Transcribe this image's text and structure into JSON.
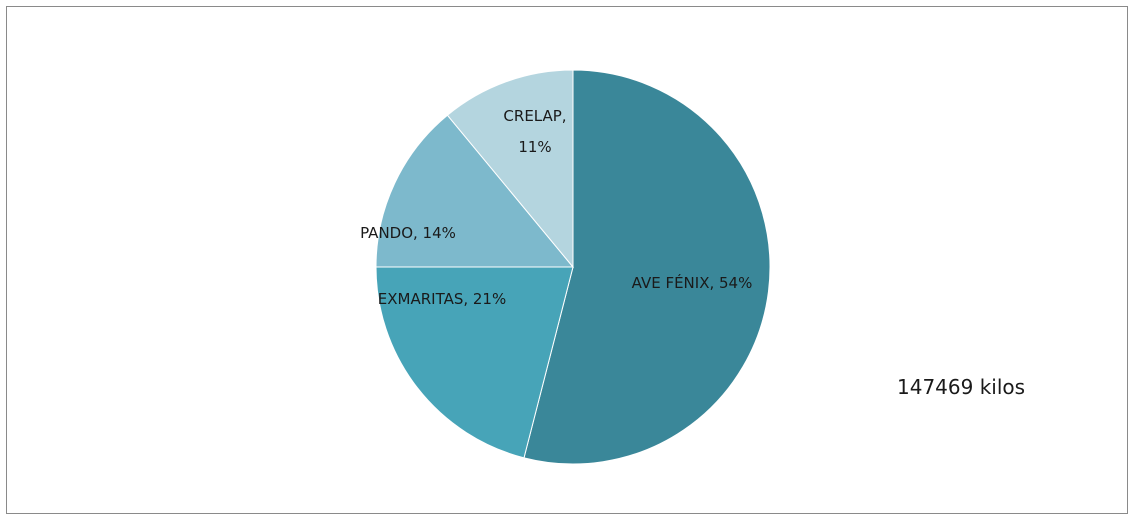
{
  "chart_data": {
    "type": "pie",
    "slices": [
      {
        "label": "AVE FÉNIX",
        "percent": 54,
        "display": "AVE FÉNIX, 54%",
        "color": "#3a8799"
      },
      {
        "label": "EXMARITAS",
        "percent": 21,
        "display": "EXMARITAS, 21%",
        "color": "#47a4b8"
      },
      {
        "label": "PANDO",
        "percent": 14,
        "display": "PANDO, 14%",
        "color": "#7db9cc"
      },
      {
        "label": "CRELAP",
        "percent": 11,
        "display_lines": [
          "CRELAP,",
          "11%"
        ],
        "color": "#b4d5df"
      }
    ],
    "start": "12 o'clock",
    "direction": "clockwise",
    "legend": "none"
  },
  "annotation": {
    "total_text": "147469 kilos"
  }
}
